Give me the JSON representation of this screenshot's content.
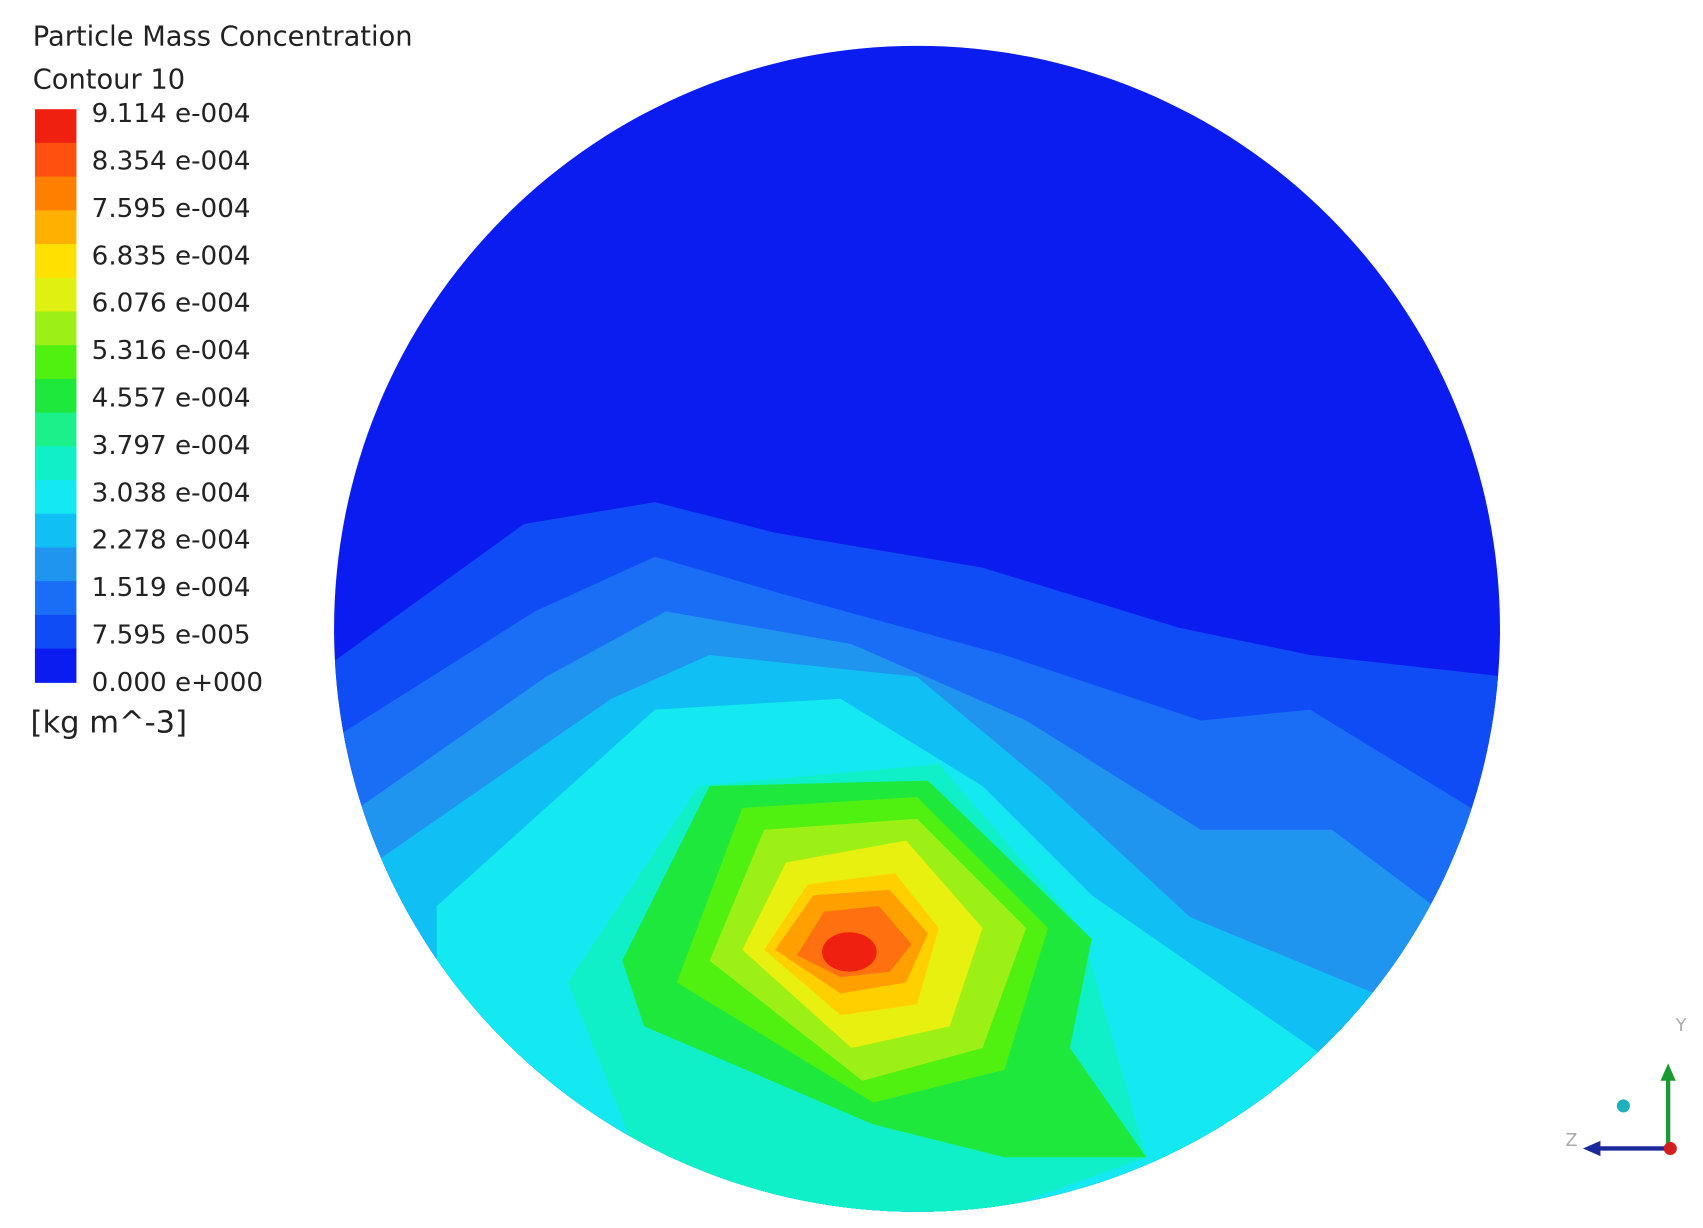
{
  "legend": {
    "title": "Particle Mass Concentration",
    "subtitle": "Contour 10",
    "labels": [
      "9.114 e-004",
      "8.354 e-004",
      "7.595 e-004",
      "6.835 e-004",
      "6.076 e-004",
      "5.316 e-004",
      "4.557 e-004",
      "3.797 e-004",
      "3.038 e-004",
      "2.278 e-004",
      "1.519 e-004",
      "7.595 e-005",
      "0.000 e+000"
    ],
    "unit": "[kg m^-3]"
  },
  "triad": {
    "y": "Y",
    "z": "Z"
  }
}
